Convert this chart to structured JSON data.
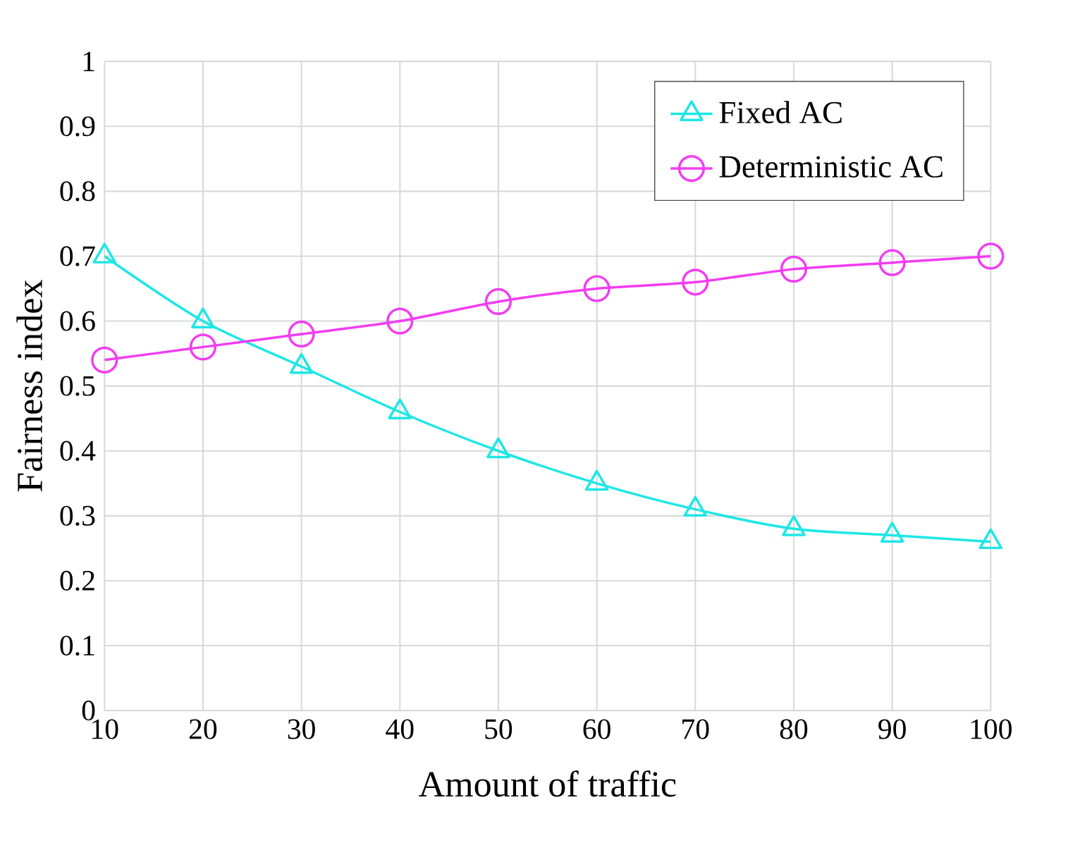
{
  "chart_data": {
    "type": "line",
    "xlabel": "Amount of traffic",
    "ylabel": "Fairness index",
    "x": [
      10,
      20,
      30,
      40,
      50,
      60,
      70,
      80,
      90,
      100
    ],
    "series": [
      {
        "name": "Fixed AC",
        "color": "#1ee6e6",
        "marker": "triangle",
        "values": [
          0.7,
          0.6,
          0.53,
          0.46,
          0.4,
          0.35,
          0.31,
          0.28,
          0.27,
          0.26
        ]
      },
      {
        "name": "Deterministic AC",
        "color": "#f23cf2",
        "marker": "circle",
        "values": [
          0.54,
          0.56,
          0.58,
          0.6,
          0.63,
          0.65,
          0.66,
          0.68,
          0.69,
          0.7
        ]
      }
    ],
    "xlim": [
      10,
      100
    ],
    "xticks": [
      10,
      20,
      30,
      40,
      50,
      60,
      70,
      80,
      90,
      100
    ],
    "ylim": [
      0,
      1
    ],
    "yticks": [
      0,
      0.1,
      0.2,
      0.3,
      0.4,
      0.5,
      0.6,
      0.7,
      0.8,
      0.9,
      1
    ],
    "grid": true,
    "legend": "top right",
    "line_style": "solid"
  }
}
